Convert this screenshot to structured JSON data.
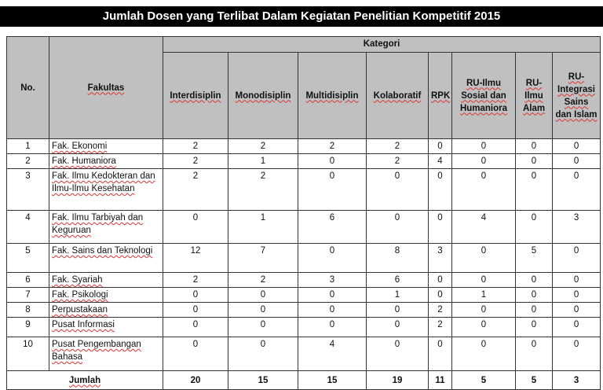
{
  "title": "Jumlah Dosen yang Terlibat Dalam Kegiatan Penelitian Kompetitif 2015",
  "table": {
    "header_no": "No.",
    "header_fakultas": "Fakultas",
    "header_group": "Kategori",
    "columns": [
      "Interdisiplin",
      "Monodisiplin",
      "Multidisiplin",
      "Kolaboratif",
      "RPK",
      "RU-Ilmu Sosial dan Humaniora",
      "RU-Ilmu Alam",
      "RU-Integrasi Sains dan Islam"
    ],
    "rows": [
      {
        "no": "1",
        "fakultas": "Fak. Ekonomi",
        "values": [
          "2",
          "2",
          "2",
          "2",
          "0",
          "0",
          "0",
          "0"
        ]
      },
      {
        "no": "2",
        "fakultas": "Fak. Humaniora",
        "values": [
          "2",
          "1",
          "0",
          "2",
          "4",
          "0",
          "0",
          "0"
        ]
      },
      {
        "no": "3",
        "fakultas": "Fak. Ilmu Kedokteran dan Ilmu-Ilmu Kesehatan",
        "values": [
          "2",
          "2",
          "0",
          "0",
          "0",
          "0",
          "0",
          "0"
        ]
      },
      {
        "no": "4",
        "fakultas": "Fak. Ilmu Tarbiyah dan Keguruan",
        "values": [
          "0",
          "1",
          "6",
          "0",
          "0",
          "4",
          "0",
          "3"
        ]
      },
      {
        "no": "5",
        "fakultas": "Fak. Sains dan Teknologi",
        "values": [
          "12",
          "7",
          "0",
          "8",
          "3",
          "0",
          "5",
          "0"
        ]
      },
      {
        "no": "6",
        "fakultas": "Fak. Syariah",
        "values": [
          "2",
          "2",
          "3",
          "6",
          "0",
          "0",
          "0",
          "0"
        ]
      },
      {
        "no": "7",
        "fakultas": "Fak. Psikologi",
        "values": [
          "0",
          "0",
          "0",
          "1",
          "0",
          "1",
          "0",
          "0"
        ]
      },
      {
        "no": "8",
        "fakultas": "Perpustakaan",
        "values": [
          "0",
          "0",
          "0",
          "0",
          "2",
          "0",
          "0",
          "0"
        ]
      },
      {
        "no": "9",
        "fakultas": "Pusat Informasi",
        "values": [
          "0",
          "0",
          "0",
          "0",
          "2",
          "0",
          "0",
          "0"
        ]
      },
      {
        "no": "10",
        "fakultas": "Pusat Pengembangan Bahasa",
        "values": [
          "0",
          "0",
          "4",
          "0",
          "0",
          "0",
          "0",
          "0"
        ]
      }
    ],
    "total_label": "Jumlah",
    "totals": [
      "20",
      "15",
      "15",
      "19",
      "11",
      "5",
      "5",
      "3"
    ]
  }
}
